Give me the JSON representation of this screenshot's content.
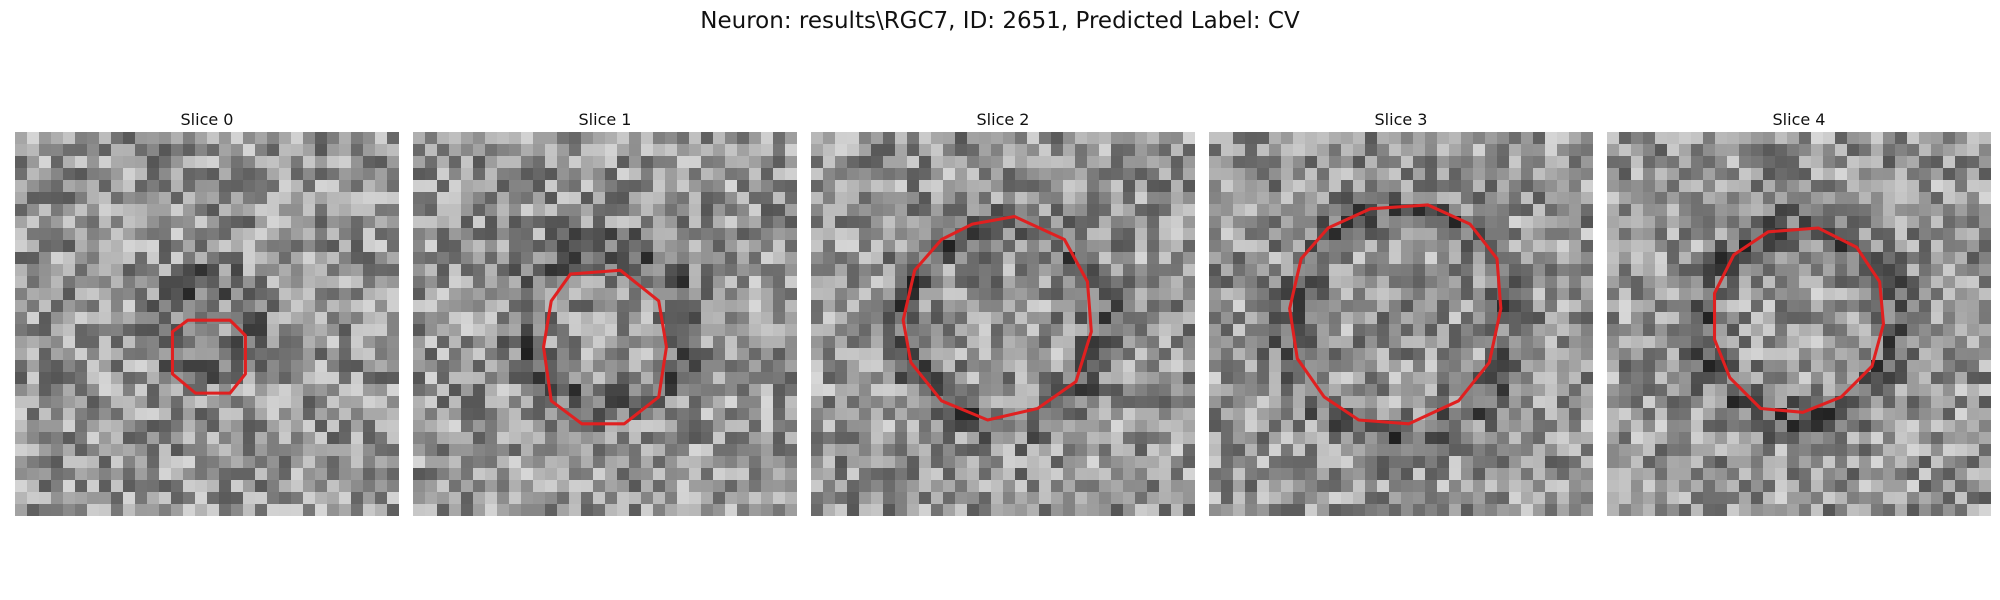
{
  "figure": {
    "title": "Neuron: results\\RGC7, ID: 2651, Predicted Label: CV"
  },
  "panels": [
    {
      "title": "Slice 0",
      "contour": [
        [
          4.5,
          4.9
        ],
        [
          5.6,
          4.9
        ],
        [
          6.0,
          5.3
        ],
        [
          6.0,
          6.3
        ],
        [
          5.6,
          6.8
        ],
        [
          4.7,
          6.8
        ],
        [
          4.1,
          6.3
        ],
        [
          4.1,
          5.2
        ]
      ]
    },
    {
      "title": "Slice 1",
      "contour": [
        [
          4.1,
          3.7
        ],
        [
          5.4,
          3.6
        ],
        [
          6.4,
          4.4
        ],
        [
          6.6,
          5.6
        ],
        [
          6.4,
          6.9
        ],
        [
          5.5,
          7.6
        ],
        [
          4.4,
          7.6
        ],
        [
          3.6,
          7.0
        ],
        [
          3.4,
          5.6
        ],
        [
          3.6,
          4.4
        ]
      ]
    },
    {
      "title": "Slice 2",
      "contour": [
        [
          4.2,
          2.4
        ],
        [
          5.3,
          2.2
        ],
        [
          6.6,
          2.8
        ],
        [
          7.2,
          3.9
        ],
        [
          7.3,
          5.2
        ],
        [
          6.9,
          6.5
        ],
        [
          5.9,
          7.2
        ],
        [
          4.6,
          7.5
        ],
        [
          3.4,
          7.0
        ],
        [
          2.6,
          6.0
        ],
        [
          2.4,
          4.9
        ],
        [
          2.7,
          3.6
        ],
        [
          3.4,
          2.8
        ]
      ]
    },
    {
      "title": "Slice 3",
      "contour": [
        [
          4.2,
          2.0
        ],
        [
          5.7,
          1.9
        ],
        [
          6.8,
          2.4
        ],
        [
          7.5,
          3.3
        ],
        [
          7.6,
          4.6
        ],
        [
          7.3,
          6.0
        ],
        [
          6.5,
          7.0
        ],
        [
          5.2,
          7.6
        ],
        [
          3.9,
          7.5
        ],
        [
          3.0,
          6.9
        ],
        [
          2.3,
          5.9
        ],
        [
          2.1,
          4.6
        ],
        [
          2.4,
          3.3
        ],
        [
          3.1,
          2.5
        ]
      ]
    },
    {
      "title": "Slice 4",
      "contour": [
        [
          4.2,
          2.6
        ],
        [
          5.5,
          2.5
        ],
        [
          6.5,
          3.0
        ],
        [
          7.1,
          3.9
        ],
        [
          7.2,
          5.0
        ],
        [
          6.9,
          6.1
        ],
        [
          6.1,
          6.9
        ],
        [
          5.1,
          7.3
        ],
        [
          4.0,
          7.2
        ],
        [
          3.2,
          6.4
        ],
        [
          2.8,
          5.4
        ],
        [
          2.8,
          4.2
        ],
        [
          3.3,
          3.2
        ]
      ]
    }
  ],
  "colors": {
    "contour": "#e02020",
    "background": "#ffffff"
  }
}
